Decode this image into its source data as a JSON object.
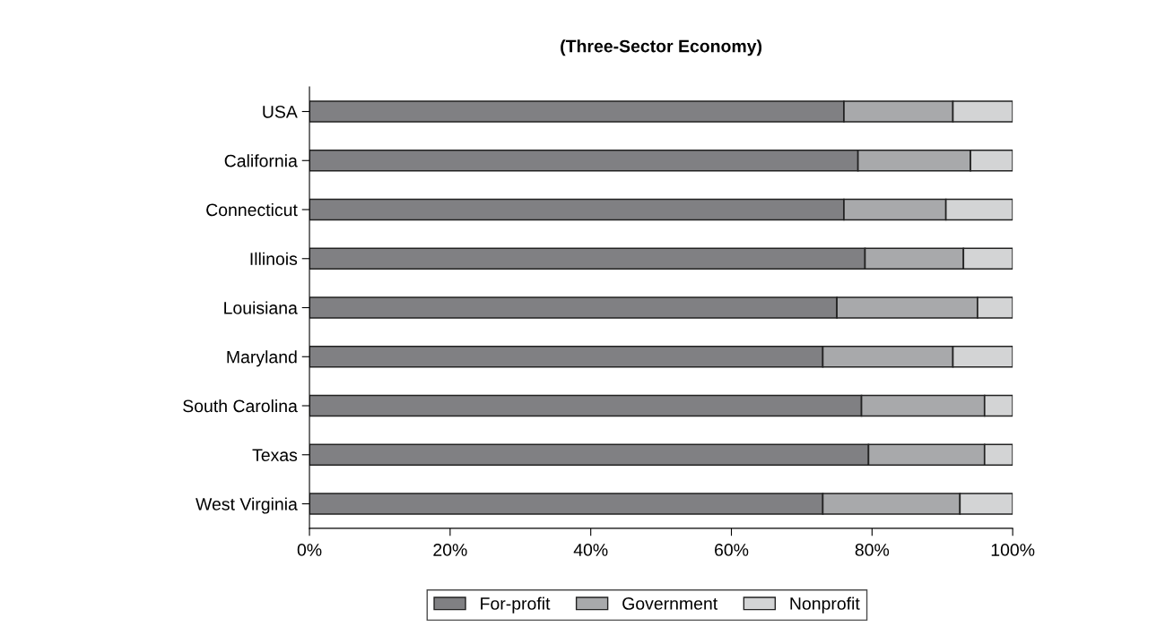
{
  "chart_data": {
    "type": "bar",
    "orientation": "horizontal",
    "stacked": true,
    "title": "(Three-Sector Economy)",
    "categories": [
      "USA",
      "California",
      "Connecticut",
      "Illinois",
      "Louisiana",
      "Maryland",
      "South Carolina",
      "Texas",
      "West Virginia"
    ],
    "series": [
      {
        "name": "For-profit",
        "color": "#808083",
        "values": [
          76,
          78,
          76,
          79,
          75,
          73,
          78.5,
          79.5,
          73
        ]
      },
      {
        "name": "Government",
        "color": "#a8a9ab",
        "values": [
          15.5,
          16,
          14.5,
          14,
          20,
          18.5,
          17.5,
          16.5,
          19.5
        ]
      },
      {
        "name": "Nonprofit",
        "color": "#d3d4d5",
        "values": [
          8.5,
          6,
          9.5,
          7,
          5,
          8.5,
          4,
          4,
          7.5
        ]
      }
    ],
    "xlim": [
      0,
      100
    ],
    "xticks": [
      {
        "value": 0,
        "label": "0%"
      },
      {
        "value": 20,
        "label": "20%"
      },
      {
        "value": 40,
        "label": "40%"
      },
      {
        "value": 60,
        "label": "60%"
      },
      {
        "value": 80,
        "label": "80%"
      },
      {
        "value": 100,
        "label": "100%"
      }
    ],
    "legend": "bottom",
    "grid": false
  }
}
